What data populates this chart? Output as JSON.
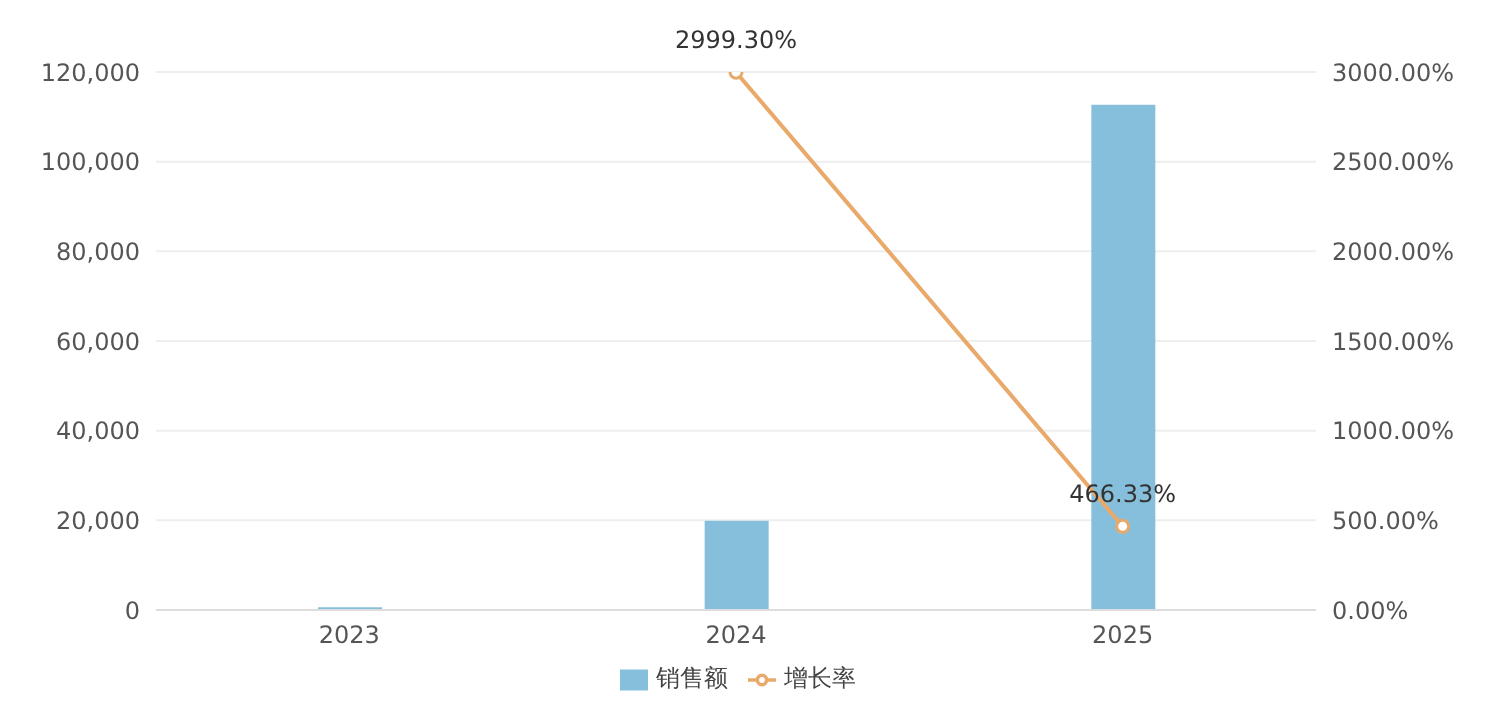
{
  "chart_data": {
    "type": "bar",
    "categories": [
      "2023",
      "2024",
      "2025"
    ],
    "series": [
      {
        "name": "销售额",
        "color": "#86bfdc",
        "values": [
          600,
          19900,
          112700
        ]
      },
      {
        "name": "增长率",
        "type": "line",
        "axis": "y2",
        "color": "#e8a96a",
        "values": [
          null,
          2999.3,
          466.33
        ],
        "value_labels": [
          null,
          "2999.30%",
          "466.33%"
        ],
        "marker": "circle"
      }
    ],
    "ylim": [
      0,
      120000
    ],
    "yticks": [
      {
        "value": 0,
        "label": "0"
      },
      {
        "value": 20000,
        "label": "20,000"
      },
      {
        "value": 40000,
        "label": "40,000"
      },
      {
        "value": 60000,
        "label": "60,000"
      },
      {
        "value": 80000,
        "label": "80,000"
      },
      {
        "value": 100000,
        "label": "100,000"
      },
      {
        "value": 120000,
        "label": "120,000"
      }
    ],
    "y2lim": [
      0,
      3000
    ],
    "y2ticks": [
      {
        "value": 0,
        "label": "0.00%"
      },
      {
        "value": 500,
        "label": "500.00%"
      },
      {
        "value": 1000,
        "label": "1000.00%"
      },
      {
        "value": 1500,
        "label": "1500.00%"
      },
      {
        "value": 2000,
        "label": "2000.00%"
      },
      {
        "value": 2500,
        "label": "2500.00%"
      },
      {
        "value": 3000,
        "label": "3000.00%"
      }
    ],
    "grid": "y",
    "legend": "bottom"
  }
}
